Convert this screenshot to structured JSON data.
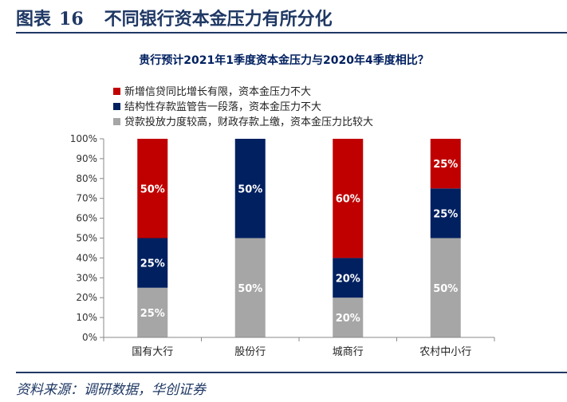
{
  "figure": {
    "label": "图表",
    "number": "16",
    "title": "不同银行资本金压力有所分化",
    "source": "资料来源：调研数据，华创证券"
  },
  "chart_data": {
    "type": "bar",
    "stacked": true,
    "title": "贵行预计2021年1季度资本金压力与2020年4季度相比？",
    "categories": [
      "国有大行",
      "股份行",
      "城商行",
      "农村中小行"
    ],
    "series": [
      {
        "name": "贷款投放力度较高，财政存款上缴，资本金压力比较大",
        "color": "#a6a6a6",
        "values": [
          25,
          50,
          20,
          50
        ]
      },
      {
        "name": "结构性存款监管告一段落，资本金压力不大",
        "color": "#002060",
        "values": [
          25,
          50,
          20,
          25
        ]
      },
      {
        "name": "新增信贷同比增长有限，资本金压力不大",
        "color": "#c00000",
        "values": [
          50,
          0,
          60,
          25
        ]
      }
    ],
    "value_labels": [
      [
        "25%",
        "50%",
        "20%",
        "50%"
      ],
      [
        "25%",
        "50%",
        "20%",
        "25%"
      ],
      [
        "50%",
        "",
        "60%",
        "25%"
      ]
    ],
    "legend_order": [
      2,
      1,
      0
    ],
    "legend_position": "top-left",
    "ylim": [
      0,
      100
    ],
    "yticks": [
      "0%",
      "10%",
      "20%",
      "30%",
      "40%",
      "50%",
      "60%",
      "70%",
      "80%",
      "90%",
      "100%"
    ],
    "grid": false
  }
}
